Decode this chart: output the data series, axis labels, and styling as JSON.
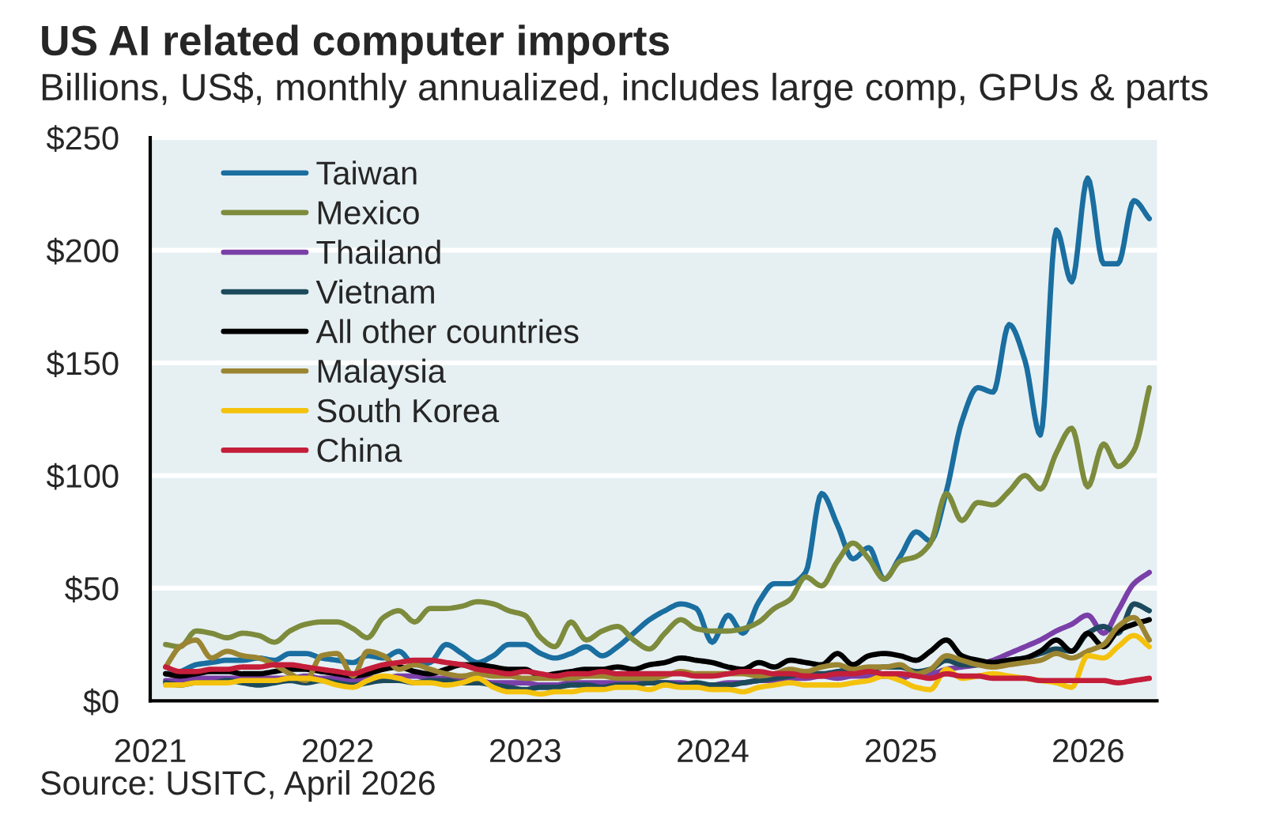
{
  "chart_data": {
    "type": "line",
    "title": "US AI related computer imports",
    "subtitle": "Billions, US$, monthly annualized, includes large comp, GPUs & parts",
    "x": [
      "2021-01-31",
      "2021-02-28",
      "2021-03-31",
      "2021-04-30",
      "2021-05-31",
      "2021-06-30",
      "2021-07-31",
      "2021-08-31",
      "2021-09-30",
      "2021-10-31",
      "2021-11-30",
      "2021-12-31",
      "2022-01-31",
      "2022-02-28",
      "2022-03-31",
      "2022-04-30",
      "2022-05-31",
      "2022-06-30",
      "2022-07-31",
      "2022-08-31",
      "2022-09-30",
      "2022-10-31",
      "2022-11-30",
      "2022-12-31",
      "2023-01-31",
      "2023-02-28",
      "2023-03-31",
      "2023-04-30",
      "2023-05-31",
      "2023-06-30",
      "2023-07-31",
      "2023-08-31",
      "2023-09-30",
      "2023-10-31",
      "2023-11-30",
      "2023-12-31",
      "2024-01-31",
      "2024-02-29",
      "2024-03-31",
      "2024-04-30",
      "2024-05-31",
      "2024-06-30",
      "2024-07-31",
      "2024-08-31",
      "2024-09-30",
      "2024-10-31",
      "2024-11-30",
      "2024-12-31",
      "2025-01-31",
      "2025-02-28",
      "2025-03-31",
      "2025-04-30",
      "2025-05-31",
      "2025-06-30",
      "2025-07-31",
      "2025-08-31",
      "2025-09-30",
      "2025-10-31",
      "2025-11-30",
      "2025-12-31",
      "2026-01-31",
      "2026-02-28",
      "2026-03-31",
      "2026-04-30"
    ],
    "series": [
      {
        "name": "Taiwan",
        "color": "#1a6ea0",
        "values": [
          12,
          13,
          16,
          17,
          18,
          18,
          19,
          18,
          21,
          21,
          19,
          18,
          17,
          20,
          19,
          22,
          16,
          17,
          25,
          21,
          17,
          20,
          25,
          25,
          21,
          19,
          21,
          24,
          20,
          24,
          30,
          36,
          40,
          43,
          41,
          26,
          38,
          30,
          44,
          52,
          52,
          57,
          92,
          78,
          63,
          68,
          54,
          64,
          75,
          71,
          93,
          124,
          139,
          137,
          167,
          151,
          118,
          209,
          186,
          232,
          194,
          194,
          222,
          214
        ]
      },
      {
        "name": "Mexico",
        "color": "#7d8b3c",
        "values": [
          25,
          24,
          31,
          30,
          28,
          30,
          29,
          26,
          31,
          34,
          35,
          35,
          32,
          28,
          37,
          40,
          35,
          41,
          41,
          42,
          44,
          43,
          40,
          38,
          28,
          24,
          35,
          27,
          31,
          33,
          27,
          23,
          30,
          36,
          32,
          31,
          31,
          32,
          35,
          41,
          45,
          55,
          51,
          62,
          70,
          63,
          54,
          62,
          64,
          70,
          92,
          80,
          88,
          87,
          93,
          100,
          94,
          110,
          121,
          95,
          114,
          104,
          111,
          139
        ]
      },
      {
        "name": "Thailand",
        "color": "#7a3fa8",
        "values": [
          9,
          9,
          10,
          10,
          10,
          10,
          10,
          10,
          10,
          11,
          10,
          10,
          9,
          10,
          10,
          11,
          11,
          10,
          10,
          9,
          9,
          8,
          8,
          8,
          7,
          7,
          8,
          8,
          8,
          8,
          8,
          8,
          8,
          8,
          7,
          7,
          8,
          8,
          9,
          9,
          10,
          10,
          11,
          10,
          11,
          11,
          11,
          10,
          12,
          12,
          14,
          15,
          16,
          18,
          21,
          24,
          27,
          31,
          34,
          38,
          30,
          40,
          52,
          57
        ]
      },
      {
        "name": "Vietnam",
        "color": "#1c4a5c",
        "values": [
          8,
          7,
          8,
          8,
          9,
          8,
          7,
          8,
          9,
          8,
          9,
          8,
          7,
          8,
          9,
          9,
          8,
          9,
          9,
          8,
          8,
          7,
          6,
          5,
          6,
          6,
          7,
          7,
          6,
          7,
          7,
          8,
          8,
          7,
          8,
          7,
          7,
          8,
          9,
          10,
          11,
          12,
          12,
          13,
          14,
          14,
          15,
          15,
          13,
          14,
          18,
          16,
          16,
          17,
          18,
          19,
          21,
          23,
          22,
          30,
          33,
          30,
          43,
          40
        ]
      },
      {
        "name": "All other countries",
        "color": "#000000",
        "values": [
          12,
          11,
          12,
          13,
          13,
          12,
          12,
          13,
          14,
          14,
          13,
          12,
          11,
          12,
          14,
          15,
          13,
          12,
          14,
          16,
          16,
          15,
          14,
          14,
          11,
          12,
          13,
          14,
          14,
          15,
          14,
          16,
          17,
          19,
          18,
          17,
          15,
          14,
          17,
          15,
          18,
          17,
          16,
          21,
          16,
          20,
          21,
          20,
          18,
          22,
          27,
          20,
          18,
          17,
          18,
          19,
          22,
          27,
          22,
          30,
          24,
          31,
          34,
          36
        ]
      },
      {
        "name": "Malaysia",
        "color": "#9b8532",
        "values": [
          15,
          24,
          27,
          19,
          22,
          20,
          19,
          16,
          12,
          9,
          20,
          21,
          11,
          22,
          20,
          14,
          16,
          14,
          12,
          11,
          12,
          11,
          11,
          10,
          10,
          10,
          10,
          11,
          11,
          10,
          10,
          10,
          11,
          13,
          12,
          12,
          12,
          12,
          11,
          12,
          14,
          13,
          15,
          16,
          14,
          15,
          15,
          16,
          12,
          14,
          20,
          18,
          16,
          15,
          16,
          17,
          18,
          21,
          19,
          22,
          25,
          33,
          37,
          27
        ]
      },
      {
        "name": "South Korea",
        "color": "#f4c20d",
        "values": [
          7,
          7,
          8,
          8,
          8,
          9,
          9,
          9,
          10,
          10,
          9,
          7,
          6,
          9,
          11,
          10,
          8,
          8,
          7,
          8,
          10,
          6,
          4,
          4,
          3,
          4,
          4,
          5,
          5,
          6,
          6,
          5,
          7,
          6,
          6,
          5,
          5,
          4,
          6,
          7,
          8,
          7,
          7,
          7,
          8,
          9,
          11,
          9,
          6,
          5,
          14,
          10,
          11,
          12,
          11,
          10,
          9,
          8,
          6,
          20,
          19,
          24,
          29,
          24
        ]
      },
      {
        "name": "China",
        "color": "#c41e3a",
        "values": [
          15,
          13,
          13,
          14,
          14,
          15,
          15,
          16,
          16,
          15,
          14,
          13,
          12,
          14,
          16,
          17,
          18,
          18,
          17,
          16,
          14,
          13,
          12,
          13,
          12,
          11,
          12,
          12,
          13,
          12,
          12,
          12,
          12,
          12,
          11,
          11,
          12,
          13,
          13,
          12,
          12,
          11,
          11,
          12,
          12,
          13,
          12,
          12,
          11,
          10,
          12,
          11,
          11,
          10,
          10,
          10,
          9,
          9,
          9,
          9,
          9,
          8,
          9,
          10
        ]
      }
    ],
    "xlim": [
      "2021-01-01",
      "2026-05-15"
    ],
    "xticks": [
      "2021",
      "2022",
      "2023",
      "2024",
      "2025",
      "2026"
    ],
    "ylim": [
      0,
      250
    ],
    "yticks": [
      {
        "value": 0,
        "label": "$0"
      },
      {
        "value": 50,
        "label": "$50"
      },
      {
        "value": 100,
        "label": "$100"
      },
      {
        "value": 150,
        "label": "$150"
      },
      {
        "value": 200,
        "label": "$200"
      },
      {
        "value": 250,
        "label": "$250"
      }
    ],
    "grid": "y",
    "legend": "top left",
    "line_style": "solid",
    "annotations": [
      "Source: USITC, April 2026"
    ]
  }
}
